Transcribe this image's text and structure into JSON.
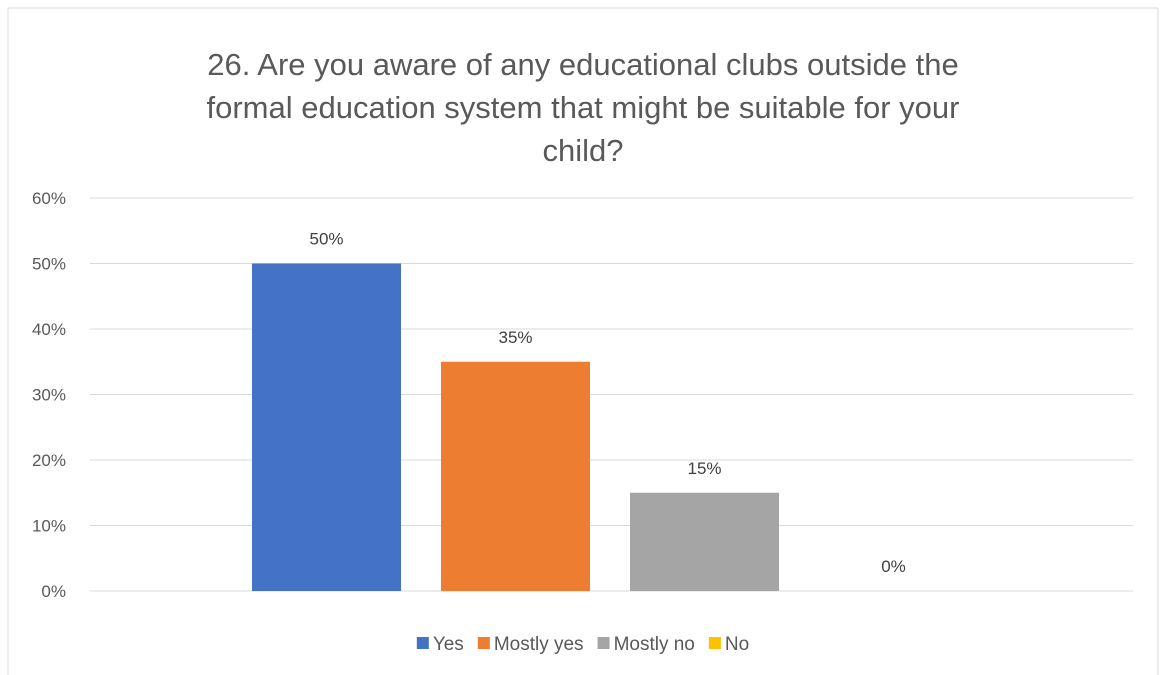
{
  "chart_data": {
    "type": "bar",
    "title_lines": [
      "26. Are you aware of any educational clubs outside the",
      "formal education system that might be suitable for your",
      "child?"
    ],
    "categories": [
      "Yes",
      "Mostly yes",
      "Mostly no",
      "No"
    ],
    "values": [
      50,
      35,
      15,
      0
    ],
    "data_labels": [
      "50%",
      "35%",
      "15%",
      "0%"
    ],
    "colors": [
      "#4472C4",
      "#ED7D31",
      "#A5A5A5",
      "#FFC000"
    ],
    "ylim": [
      0,
      60
    ],
    "y_ticks": [
      0,
      10,
      20,
      30,
      40,
      50,
      60
    ],
    "y_tick_labels": [
      "0%",
      "10%",
      "20%",
      "30%",
      "40%",
      "50%",
      "60%"
    ],
    "grid": true,
    "legend_position": "bottom",
    "xlabel": "",
    "ylabel": ""
  },
  "style": {
    "border_color": "#D9D9D9",
    "grid_color": "#D9D9D9",
    "text_color": "#595959"
  }
}
